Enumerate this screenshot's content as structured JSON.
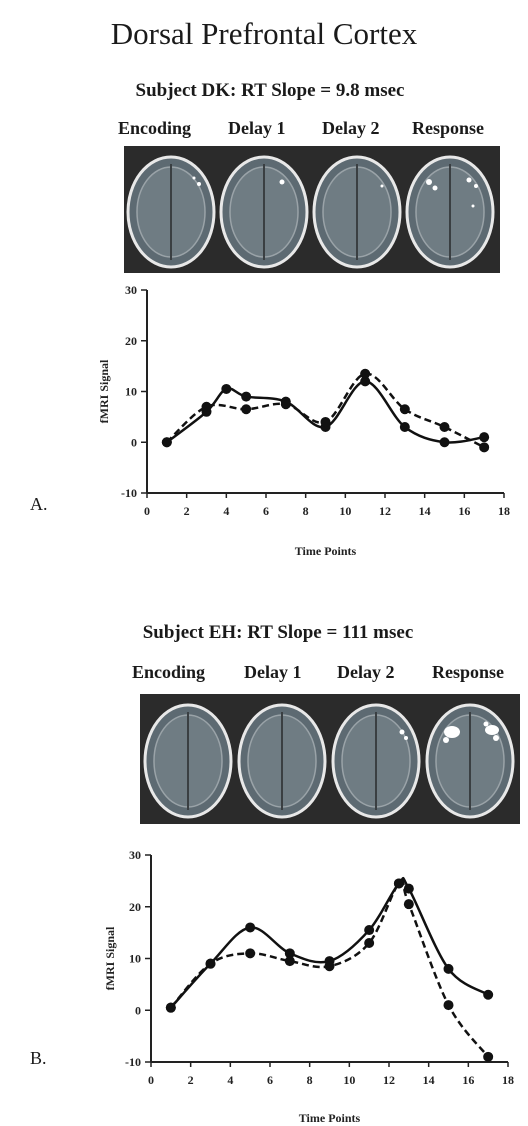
{
  "title": "Dorsal Prefrontal Cortex",
  "phases_a": [
    "Encoding",
    "Delay 1",
    "Delay 2",
    "Response"
  ],
  "phases_b": [
    "Encoding",
    "Delay 1",
    "Delay 2",
    "Response"
  ],
  "panels": [
    {
      "letter": "A.",
      "subject": "Subject DK: RT Slope = 9.8 msec"
    },
    {
      "letter": "B.",
      "subject": "Subject EH: RT Slope = 111 msec"
    }
  ],
  "chart_data": [
    {
      "type": "line",
      "title": "",
      "xlabel": "Time Points",
      "ylabel": "fMRI Signal",
      "xlim": [
        0,
        18
      ],
      "ylim": [
        -10,
        30
      ],
      "xticks": [
        0,
        2,
        4,
        6,
        8,
        10,
        12,
        14,
        16,
        18
      ],
      "yticks": [
        -10,
        0,
        10,
        20,
        30
      ],
      "grid": false,
      "series": [
        {
          "style": "solid",
          "x": [
            1,
            3,
            4,
            5,
            7,
            9,
            11,
            13,
            15,
            17
          ],
          "y": [
            0,
            6,
            10.5,
            9,
            8,
            3,
            12,
            3,
            0,
            1
          ]
        },
        {
          "style": "dashed",
          "x": [
            1,
            3,
            5,
            7,
            9,
            11,
            13,
            15,
            17
          ],
          "y": [
            0,
            7,
            6.5,
            7.5,
            4,
            13.5,
            6.5,
            3,
            -1
          ]
        }
      ]
    },
    {
      "type": "line",
      "title": "",
      "xlabel": "Time Points",
      "ylabel": "fMRI Signal",
      "xlim": [
        0,
        18
      ],
      "ylim": [
        -10,
        30
      ],
      "xticks": [
        0,
        2,
        4,
        6,
        8,
        10,
        12,
        14,
        16,
        18
      ],
      "yticks": [
        -10,
        0,
        10,
        20,
        30
      ],
      "grid": false,
      "series": [
        {
          "style": "solid",
          "x": [
            1,
            3,
            5,
            7,
            9,
            11,
            12.5,
            13,
            15,
            17
          ],
          "y": [
            0.5,
            9,
            16,
            11,
            9.5,
            15.5,
            24.5,
            23.5,
            8,
            3
          ]
        },
        {
          "style": "dashed",
          "x": [
            1,
            3,
            5,
            7,
            9,
            11,
            12.5,
            13,
            15,
            17
          ],
          "y": [
            0.5,
            9,
            11,
            9.5,
            8.5,
            13,
            24.5,
            20.5,
            1,
            -9
          ]
        }
      ]
    }
  ]
}
